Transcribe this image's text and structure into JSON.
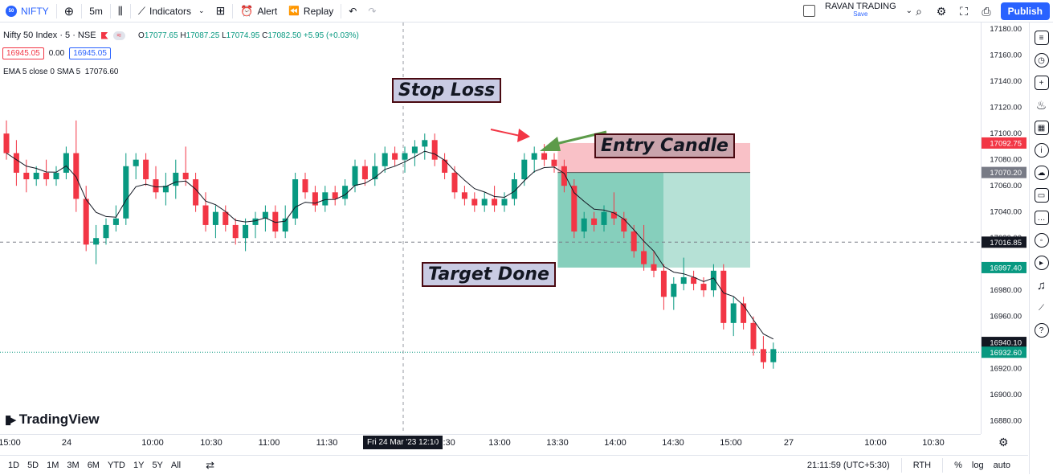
{
  "topbar": {
    "symbol": "NIFTY",
    "symbol_badge": "50",
    "interval": "5m",
    "indicators": "Indicators",
    "alert": "Alert",
    "replay": "Replay",
    "brand_name": "RAVAN TRADING",
    "brand_sub": "Save",
    "publish": "Publish"
  },
  "legend": {
    "title": "Nifty 50 Index · 5 · NSE",
    "pill": "≈",
    "ohlc": {
      "o_label": "O",
      "o": "17077.65",
      "h_label": "H",
      "h": "17087.25",
      "l_label": "L",
      "l": "17074.95",
      "c_label": "C",
      "c": "17082.50",
      "change": "+5.95 (+0.03%)"
    },
    "bid": "16945.05",
    "spread": "0.00",
    "ask": "16945.05",
    "ema": "EMA 5 close 0 SMA 5",
    "ema_value": "17076.60"
  },
  "annotations": {
    "stop_loss": "Stop Loss",
    "entry_candle": "Entry Candle",
    "target_done": "Target Done"
  },
  "chart_data": {
    "type": "candlestick",
    "price_ticks": [
      "17180.00",
      "17160.00",
      "17140.00",
      "17120.00",
      "17100.00",
      "17080.00",
      "17060.00",
      "17040.00",
      "17020.00",
      "16980.00",
      "16960.00",
      "16920.00",
      "16900.00",
      "16880.00"
    ],
    "ylim": [
      16870,
      17185
    ],
    "price_labels": [
      {
        "value": "17092.75",
        "color": "#f23645"
      },
      {
        "value": "17070.20",
        "color": "#787b86"
      },
      {
        "value": "17016.85",
        "color": "#131722"
      },
      {
        "value": "16997.40",
        "color": "#089981"
      },
      {
        "value": "16940.10",
        "color": "#131722"
      },
      {
        "value": "16932.60",
        "color": "#089981"
      }
    ],
    "time_labels": [
      "15:00",
      "24",
      "10:00",
      "10:30",
      "11:00",
      "11:30",
      "12:30",
      "13:00",
      "13:30",
      "14:00",
      "14:30",
      "15:00",
      "27",
      "10:00",
      "10:30"
    ],
    "crosshair_time": "Fri 24 Mar '23   12:10",
    "candles": [
      [
        17100,
        17110,
        17080,
        17085
      ],
      [
        17085,
        17095,
        17060,
        17070
      ],
      [
        17070,
        17080,
        17055,
        17065
      ],
      [
        17065,
        17075,
        17060,
        17070
      ],
      [
        17070,
        17080,
        17060,
        17065
      ],
      [
        17065,
        17075,
        17060,
        17070
      ],
      [
        17070,
        17090,
        17065,
        17085
      ],
      [
        17085,
        17110,
        17040,
        17050
      ],
      [
        17050,
        17060,
        17010,
        17015
      ],
      [
        17015,
        17030,
        17000,
        17020
      ],
      [
        17020,
        17035,
        17015,
        17030
      ],
      [
        17030,
        17045,
        17025,
        17035
      ],
      [
        17035,
        17085,
        17030,
        17075
      ],
      [
        17075,
        17085,
        17065,
        17080
      ],
      [
        17080,
        17085,
        17060,
        17065
      ],
      [
        17065,
        17075,
        17050,
        17055
      ],
      [
        17055,
        17070,
        17045,
        17060
      ],
      [
        17060,
        17080,
        17050,
        17070
      ],
      [
        17070,
        17090,
        17060,
        17065
      ],
      [
        17065,
        17070,
        17040,
        17045
      ],
      [
        17045,
        17055,
        17025,
        17030
      ],
      [
        17030,
        17045,
        17020,
        17040
      ],
      [
        17040,
        17045,
        17025,
        17030
      ],
      [
        17030,
        17035,
        17015,
        17020
      ],
      [
        17020,
        17035,
        17010,
        17030
      ],
      [
        17030,
        17040,
        17020,
        17035
      ],
      [
        17035,
        17045,
        17025,
        17040
      ],
      [
        17040,
        17045,
        17020,
        17025
      ],
      [
        17025,
        17045,
        17020,
        17035
      ],
      [
        17035,
        17070,
        17030,
        17065
      ],
      [
        17065,
        17070,
        17050,
        17055
      ],
      [
        17055,
        17060,
        17040,
        17045
      ],
      [
        17045,
        17060,
        17040,
        17055
      ],
      [
        17055,
        17060,
        17045,
        17050
      ],
      [
        17050,
        17065,
        17045,
        17060
      ],
      [
        17060,
        17080,
        17055,
        17075
      ],
      [
        17075,
        17080,
        17060,
        17065
      ],
      [
        17065,
        17085,
        17060,
        17075
      ],
      [
        17075,
        17090,
        17070,
        17085
      ],
      [
        17085,
        17090,
        17075,
        17080
      ],
      [
        17080,
        17090,
        17070,
        17085
      ],
      [
        17085,
        17095,
        17075,
        17090
      ],
      [
        17090,
        17100,
        17080,
        17095
      ],
      [
        17095,
        17100,
        17075,
        17080
      ],
      [
        17080,
        17085,
        17065,
        17070
      ],
      [
        17070,
        17075,
        17050,
        17055
      ],
      [
        17055,
        17060,
        17045,
        17050
      ],
      [
        17050,
        17055,
        17040,
        17045
      ],
      [
        17045,
        17055,
        17040,
        17050
      ],
      [
        17050,
        17060,
        17040,
        17045
      ],
      [
        17045,
        17055,
        17040,
        17050
      ],
      [
        17050,
        17070,
        17045,
        17065
      ],
      [
        17065,
        17085,
        17060,
        17080
      ],
      [
        17080,
        17090,
        17070,
        17085
      ],
      [
        17085,
        17092,
        17075,
        17080
      ],
      [
        17080,
        17085,
        17070,
        17075
      ],
      [
        17075,
        17080,
        17055,
        17060
      ],
      [
        17060,
        17065,
        17020,
        17025
      ],
      [
        17025,
        17040,
        17020,
        17035
      ],
      [
        17035,
        17040,
        17025,
        17030
      ],
      [
        17030,
        17045,
        17025,
        17040
      ],
      [
        17040,
        17055,
        17030,
        17035
      ],
      [
        17035,
        17040,
        17020,
        17025
      ],
      [
        17025,
        17030,
        17005,
        17010
      ],
      [
        17010,
        17030,
        16995,
        17000
      ],
      [
        17000,
        17010,
        16990,
        16995
      ],
      [
        16995,
        17000,
        16965,
        16975
      ],
      [
        16975,
        16990,
        16965,
        16985
      ],
      [
        16985,
        17005,
        16980,
        16990
      ],
      [
        16990,
        16995,
        16980,
        16985
      ],
      [
        16985,
        16990,
        16975,
        16980
      ],
      [
        16980,
        17000,
        16975,
        16995
      ],
      [
        16995,
        17000,
        16950,
        16955
      ],
      [
        16955,
        16975,
        16945,
        16970
      ],
      [
        16970,
        16975,
        16950,
        16955
      ],
      [
        16955,
        16960,
        16930,
        16935
      ],
      [
        16935,
        16945,
        16920,
        16925
      ],
      [
        16925,
        16940,
        16920,
        16935
      ]
    ],
    "series_name": "Nifty 50 Index",
    "ema_line": "EMA 5",
    "stop_loss_zone": [
      17070.2,
      17092.75
    ],
    "target_zone": [
      16997.4,
      17070.2
    ]
  },
  "bottombar": {
    "ranges": [
      "1D",
      "5D",
      "1M",
      "3M",
      "6M",
      "YTD",
      "1Y",
      "5Y",
      "All"
    ],
    "clock": "21:11:59 (UTC+5:30)",
    "session": "RTH",
    "percent": "%",
    "log": "log",
    "auto": "auto"
  },
  "branding": {
    "tradingview": "TradingView"
  },
  "colors": {
    "up": "#089981",
    "down": "#f23645",
    "accent": "#2962ff"
  }
}
